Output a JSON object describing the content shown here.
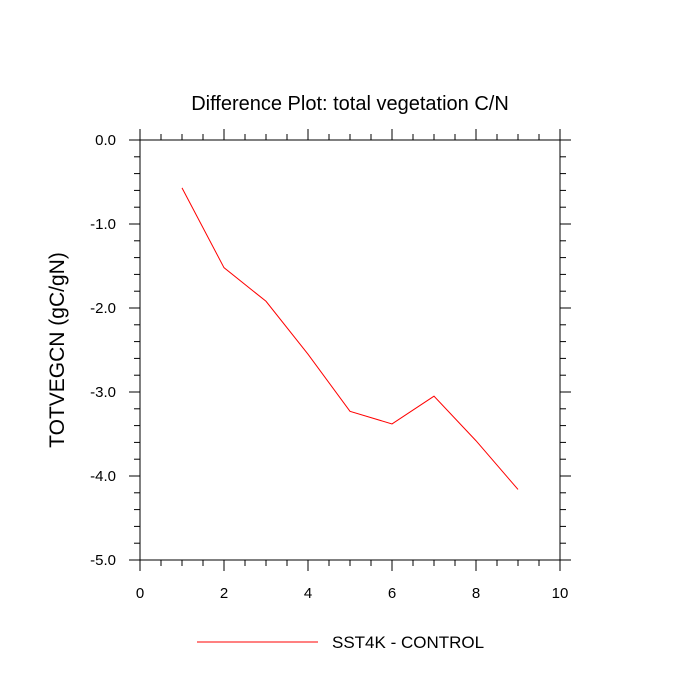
{
  "chart_data": {
    "type": "line",
    "title": "Difference Plot: total vegetation C/N",
    "xlabel": "",
    "ylabel": "TOTVEGCN  (gC/gN)",
    "xlim": [
      0,
      10
    ],
    "ylim": [
      -5,
      0
    ],
    "x_ticks": [
      0,
      2,
      4,
      6,
      8,
      10
    ],
    "x_tick_labels": [
      "0",
      "2",
      "4",
      "6",
      "8",
      "10"
    ],
    "y_ticks": [
      0,
      -1,
      -2,
      -3,
      -4,
      -5
    ],
    "y_tick_labels": [
      "0.0",
      "-1.0",
      "-2.0",
      "-3.0",
      "-4.0",
      "-5.0"
    ],
    "grid": false,
    "legend_position": "bottom-center",
    "series": [
      {
        "name": "SST4K - CONTROL",
        "color": "#ff0000",
        "x": [
          1,
          2,
          3,
          4,
          5,
          6,
          7,
          8,
          9
        ],
        "y": [
          -0.57,
          -1.52,
          -1.92,
          -2.55,
          -3.23,
          -3.38,
          -3.05,
          -3.58,
          -4.16
        ]
      }
    ]
  }
}
